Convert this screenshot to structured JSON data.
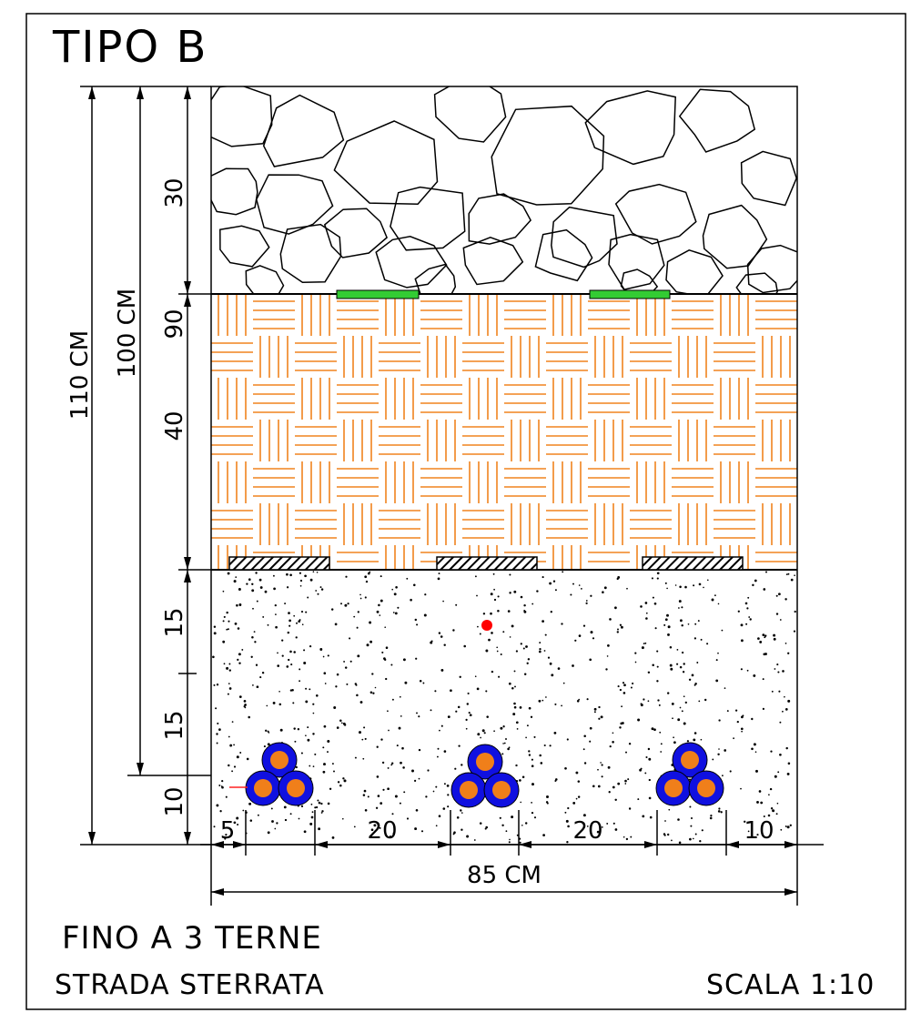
{
  "title": "TIPO B",
  "caption": {
    "line1": "FINO A 3 TERNE",
    "line2": "STRADA STERRATA",
    "scale": "SCALA 1:10"
  },
  "dimensions": {
    "total_depth": "110 CM",
    "cable_depth": "100 CM",
    "marker_depth": "90",
    "layer_gravel": "30",
    "layer_fill": "40",
    "sand_upper": "15",
    "sand_middle": "15",
    "sand_lower": "10",
    "spacing_left": "5",
    "spacing_1": "20",
    "spacing_2": "20",
    "spacing_right": "10",
    "trench_width": "85 CM"
  },
  "colors": {
    "fill_hatch": "#f0831e",
    "warning_tape": "#33cc33",
    "cable_sheath": "#1010e0",
    "cable_core": "#f07f1a",
    "sensor_dot": "#ff0000",
    "protection_slab": "#000000"
  },
  "cable_groups": 3
}
